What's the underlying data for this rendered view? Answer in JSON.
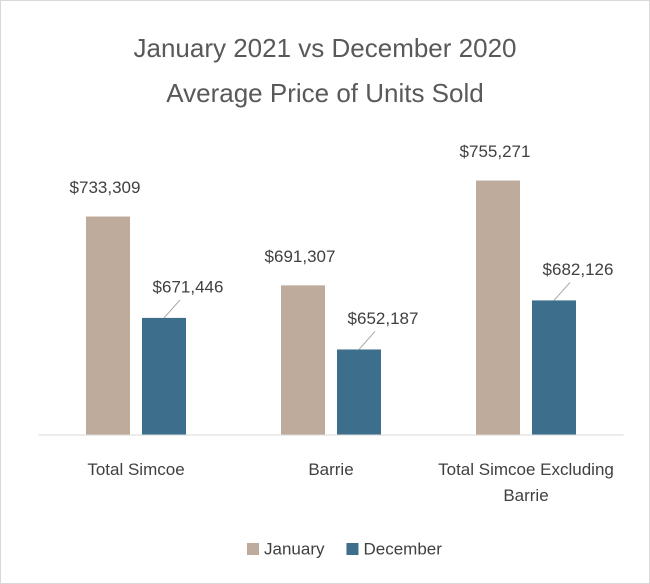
{
  "chart_data": {
    "type": "bar",
    "title": "January 2021 vs December 2020",
    "subtitle": "Average Price of Units Sold",
    "categories": [
      "Total Simcoe",
      "Barrie",
      "Total Simcoe Excluding Barrie"
    ],
    "series": [
      {
        "name": "January",
        "color": "#bfab9b",
        "values": [
          733309,
          691307,
          755271
        ],
        "value_labels": [
          "$733,309",
          "$691,307",
          "$755,271"
        ]
      },
      {
        "name": "December",
        "color": "#3d6f8c",
        "values": [
          671446,
          652187,
          682126
        ],
        "value_labels": [
          "$671,446",
          "$652,187",
          "$682,126"
        ]
      }
    ],
    "ylim": [
      600000,
      780000
    ],
    "legend": "bottom"
  }
}
